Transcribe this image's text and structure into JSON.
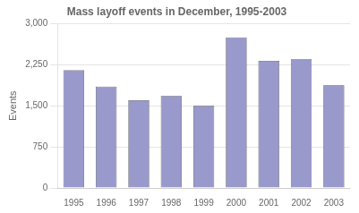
{
  "chart_data": {
    "type": "bar",
    "title": "Mass layoff events in December, 1995-2003",
    "categories": [
      "1995",
      "1996",
      "1997",
      "1998",
      "1999",
      "2000",
      "2001",
      "2002",
      "2003"
    ],
    "values": [
      2150,
      1850,
      1600,
      1680,
      1500,
      2750,
      2320,
      2350,
      1875
    ],
    "color": "#9999cc",
    "ylabel": "Events",
    "ylim": [
      0,
      3000
    ],
    "yticks": [
      0,
      750,
      {
        "value": 1500,
        "label": "1,500"
      },
      {
        "value": 2250,
        "label": "2,250"
      },
      {
        "value": 3000,
        "label": "3,000"
      }
    ],
    "grid": true
  }
}
